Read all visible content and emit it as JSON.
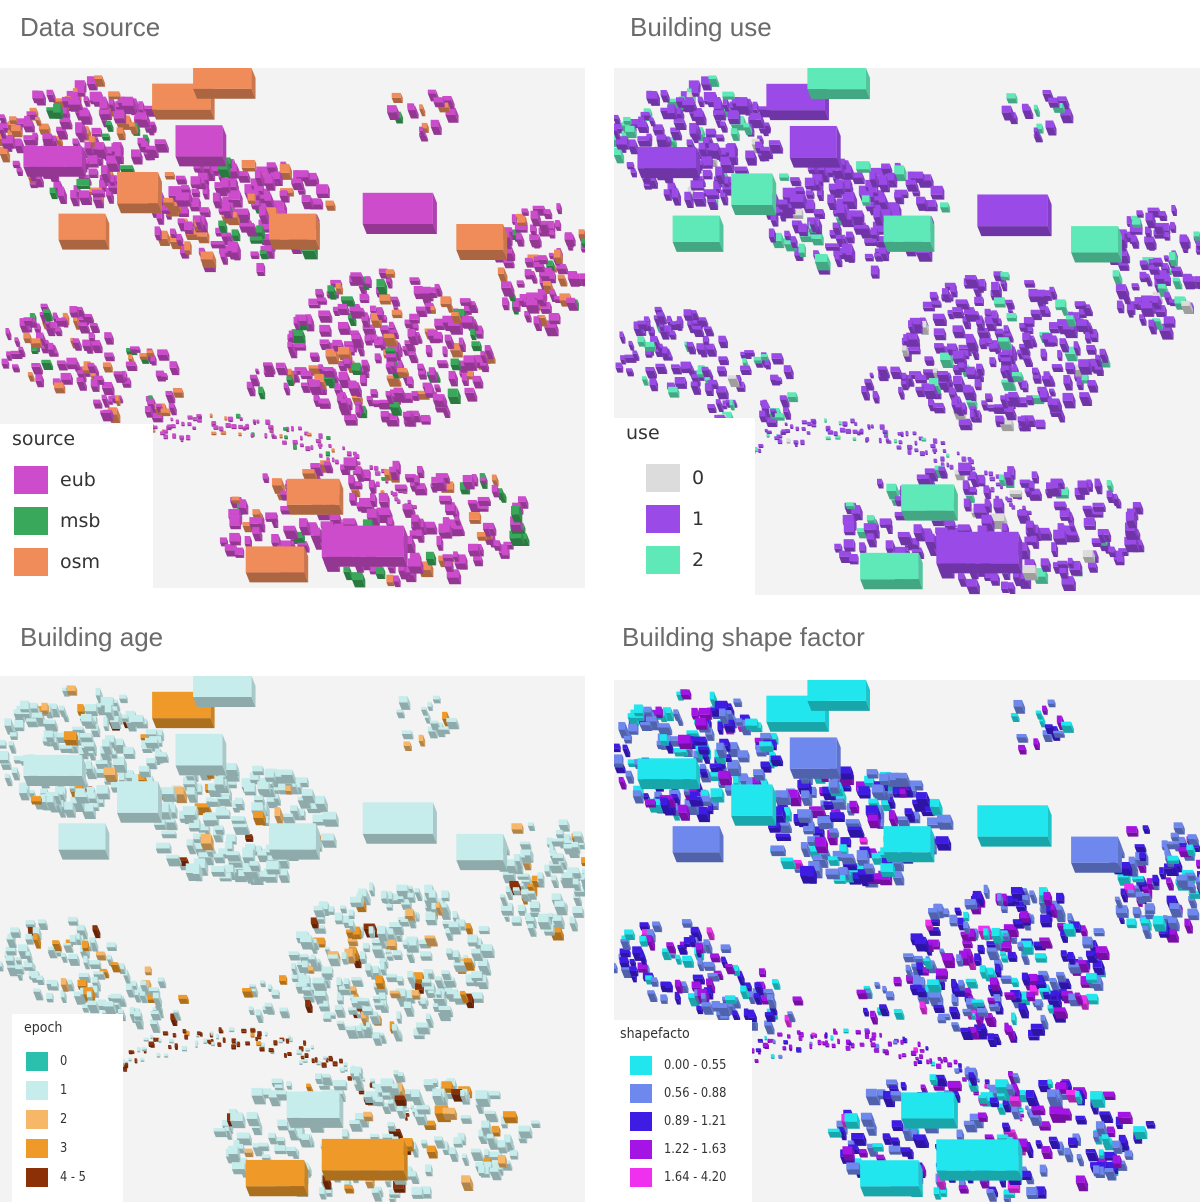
{
  "panels": [
    {
      "title": "Data source",
      "legend_title": "source",
      "legend_items": [
        {
          "label": "eub",
          "color": "#cc4ccc"
        },
        {
          "label": "msb",
          "color": "#3aa85a"
        },
        {
          "label": "osm",
          "color": "#ef8c5a"
        }
      ]
    },
    {
      "title": "Building use",
      "legend_title": "use",
      "legend_items": [
        {
          "label": "0",
          "color": "#dcdcdc"
        },
        {
          "label": "1",
          "color": "#9a4ae6"
        },
        {
          "label": "2",
          "color": "#5fe8b8"
        }
      ]
    },
    {
      "title": "Building age",
      "legend_title": "epoch",
      "legend_items": [
        {
          "label": "0",
          "color": "#2bbfae"
        },
        {
          "label": "1",
          "color": "#c7ecec"
        },
        {
          "label": "2",
          "color": "#f6b868"
        },
        {
          "label": "3",
          "color": "#ef9a28"
        },
        {
          "label": "4 - 5",
          "color": "#8c3008"
        }
      ]
    },
    {
      "title": "Building shape factor",
      "legend_title": "shapefacto",
      "legend_items": [
        {
          "label": "0.00 - 0.55",
          "color": "#22e6ee"
        },
        {
          "label": "0.56 - 0.88",
          "color": "#6e88ee"
        },
        {
          "label": "0.89 - 1.21",
          "color": "#3e1ce4"
        },
        {
          "label": "1.22 - 1.63",
          "color": "#a414e4"
        },
        {
          "label": "1.64 - 4.20",
          "color": "#ef30ef"
        }
      ]
    }
  ]
}
